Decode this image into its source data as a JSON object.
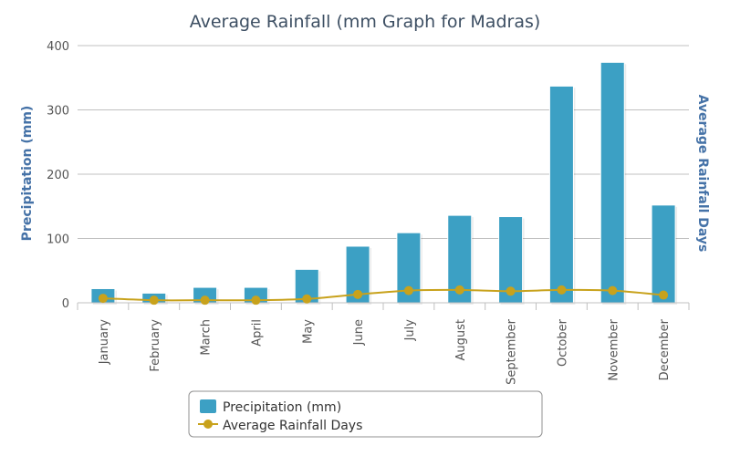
{
  "colors": {
    "bar": "#3ca0c4",
    "line": "#c8a21c",
    "grid": "#c0c0c0",
    "axis_title": "#4572a7",
    "title": "#3d4f63"
  },
  "legend": {
    "position": "bottom-center"
  },
  "chart_data": {
    "type": "bar",
    "title": "Average Rainfall (mm Graph for Madras)",
    "xlabel": "",
    "ylabel": "Precipitation (mm)",
    "y2label": "Average Rainfall Days",
    "ylim": [
      0,
      400
    ],
    "y_ticks": [
      0,
      100,
      200,
      300,
      400
    ],
    "grid": true,
    "categories": [
      "January",
      "February",
      "March",
      "April",
      "May",
      "June",
      "July",
      "August",
      "September",
      "October",
      "November",
      "December"
    ],
    "series": [
      {
        "name": "Precipitation (mm)",
        "type": "bar",
        "axis": "left",
        "values": [
          22,
          15,
          24,
          24,
          52,
          88,
          109,
          136,
          134,
          337,
          374,
          152
        ]
      },
      {
        "name": "Average Rainfall Days",
        "type": "line",
        "axis": "right",
        "values": [
          7,
          4,
          4,
          4,
          6,
          13,
          19,
          20,
          18,
          20,
          19,
          12
        ]
      }
    ]
  }
}
